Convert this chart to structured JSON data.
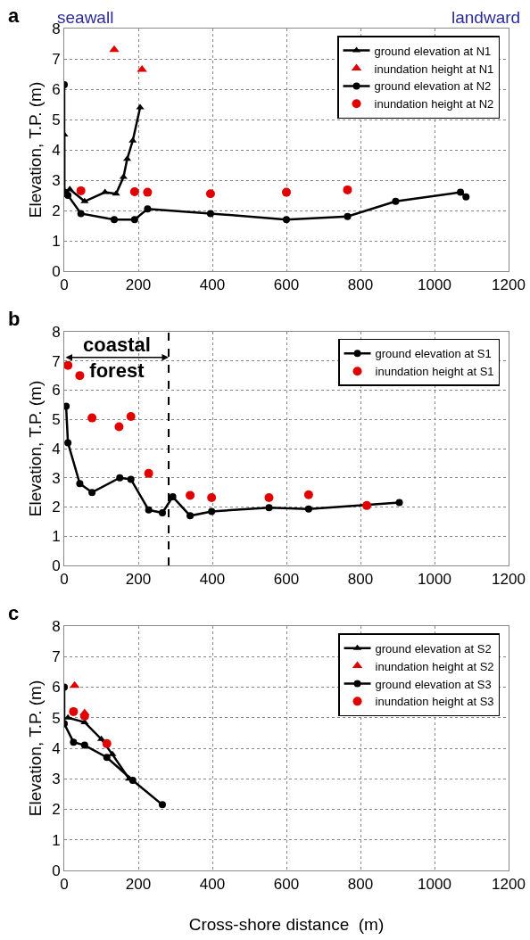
{
  "chart_data": [
    {
      "type": "line",
      "ylabel": "Elevation, T.P. (m)",
      "annotations": [
        "a",
        "seawall",
        "landward"
      ],
      "xlim": [
        0,
        1200
      ],
      "xticks": [
        0,
        200,
        400,
        600,
        800,
        1000,
        1200
      ],
      "ylim": [
        0,
        8
      ],
      "yticks": [
        0,
        1,
        2,
        3,
        4,
        5,
        6,
        7,
        8
      ],
      "grid": true,
      "legend": "top right",
      "line_style": "solid",
      "series": [
        {
          "name": "ground elevation at N1",
          "type": "line",
          "marker": "triangle",
          "color": "#000000",
          "x": [
            0,
            0,
            15,
            55,
            110,
            140,
            160,
            170,
            185,
            205
          ],
          "values": [
            4.5,
            2.5,
            2.7,
            2.3,
            2.6,
            2.55,
            3.1,
            3.7,
            4.3,
            5.4
          ]
        },
        {
          "name": "inundation height at N1",
          "type": "scatter",
          "marker": "triangle",
          "color": "#e00000",
          "x": [
            135,
            210
          ],
          "values": [
            7.3,
            6.65
          ]
        },
        {
          "name": "ground elevation at N2",
          "type": "line",
          "marker": "circle",
          "color": "#000000",
          "x": [
            0,
            0,
            10,
            45,
            135,
            190,
            225,
            395,
            600,
            765,
            895,
            1070,
            1085
          ],
          "values": [
            6.15,
            2.6,
            2.5,
            1.9,
            1.7,
            1.7,
            2.05,
            1.9,
            1.7,
            1.8,
            2.3,
            2.6,
            2.45
          ]
        },
        {
          "name": "inundation height at N2",
          "type": "scatter",
          "marker": "circle",
          "color": "#e00000",
          "x": [
            45,
            190,
            225,
            395,
            600,
            765
          ],
          "values": [
            2.65,
            2.62,
            2.6,
            2.55,
            2.6,
            2.68
          ]
        }
      ]
    },
    {
      "type": "line",
      "ylabel": "Elevation, T.P. (m)",
      "annotations": [
        "b",
        "coastal forest"
      ],
      "xlim": [
        0,
        1200
      ],
      "xticks": [
        0,
        200,
        400,
        600,
        800,
        1000,
        1200
      ],
      "ylim": [
        0,
        8
      ],
      "yticks": [
        0,
        1,
        2,
        3,
        4,
        5,
        6,
        7,
        8
      ],
      "grid": true,
      "legend": "top right",
      "line_style": "solid",
      "ref_lines": [
        {
          "axis": "x",
          "value": 282,
          "line_style": "dashed",
          "color": "#000000"
        }
      ],
      "series": [
        {
          "name": "ground elevation at S1",
          "type": "line",
          "marker": "circle",
          "color": "#000000",
          "x": [
            5,
            10,
            42,
            75,
            150,
            180,
            228,
            265,
            293,
            340,
            398,
            553,
            660,
            905
          ],
          "values": [
            5.45,
            4.2,
            2.8,
            2.5,
            3.0,
            2.95,
            1.9,
            1.8,
            2.35,
            1.7,
            1.85,
            1.98,
            1.93,
            2.15
          ]
        },
        {
          "name": "inundation height at S1",
          "type": "scatter",
          "marker": "circle",
          "color": "#e00000",
          "x": [
            10,
            42,
            75,
            148,
            180,
            228,
            340,
            398,
            553,
            660,
            817
          ],
          "values": [
            6.85,
            6.5,
            5.05,
            4.75,
            5.1,
            3.15,
            2.4,
            2.32,
            2.32,
            2.42,
            2.05
          ]
        }
      ]
    },
    {
      "type": "line",
      "xlabel": "Cross-shore distance  (m)",
      "ylabel": "Elevation, T.P. (m)",
      "annotations": [
        "c"
      ],
      "xlim": [
        0,
        1200
      ],
      "xticks": [
        0,
        200,
        400,
        600,
        800,
        1000,
        1200
      ],
      "ylim": [
        0,
        8
      ],
      "yticks": [
        0,
        1,
        2,
        3,
        4,
        5,
        6,
        7,
        8
      ],
      "grid": true,
      "legend": "top right",
      "line_style": "solid",
      "series": [
        {
          "name": "ground elevation at S2",
          "type": "line",
          "marker": "triangle",
          "color": "#000000",
          "x": [
            10,
            55,
            100,
            130,
            175
          ],
          "values": [
            5.0,
            4.85,
            4.3,
            3.8,
            3.0
          ]
        },
        {
          "name": "inundation height at S2",
          "type": "scatter",
          "marker": "triangle",
          "color": "#e00000",
          "x": [
            28,
            55
          ],
          "values": [
            6.05,
            5.15
          ]
        },
        {
          "name": "ground elevation at S3",
          "type": "line",
          "marker": "circle",
          "color": "#000000",
          "x": [
            0,
            0,
            25,
            55,
            115,
            185,
            265
          ],
          "values": [
            6.0,
            4.8,
            4.2,
            4.1,
            3.7,
            2.95,
            2.15
          ]
        },
        {
          "name": "inundation height at S3",
          "type": "scatter",
          "marker": "circle",
          "color": "#e00000",
          "x": [
            25,
            55,
            115
          ],
          "values": [
            5.2,
            5.05,
            4.15
          ]
        }
      ]
    }
  ]
}
